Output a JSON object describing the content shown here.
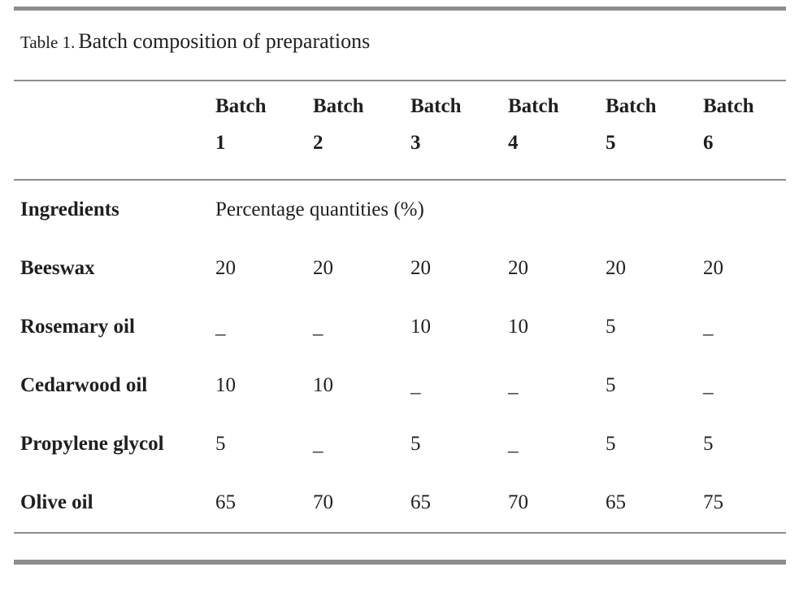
{
  "table": {
    "caption_label": "Table 1.",
    "caption_title": "Batch composition of preparations",
    "header": {
      "columns": [
        "Batch 1",
        "Batch 2",
        "Batch 3",
        "Batch 4",
        "Batch 5",
        "Batch 6"
      ]
    },
    "subheader": {
      "label": "Ingredients",
      "value": "Percentage quantities (%)"
    },
    "rows": [
      {
        "label": "Beeswax",
        "values": [
          "20",
          "20",
          "20",
          "20",
          "20",
          "20"
        ]
      },
      {
        "label": "Rosemary oil",
        "values": [
          "_",
          "_",
          "10",
          "10",
          "5",
          "_"
        ]
      },
      {
        "label": "Cedarwood oil",
        "values": [
          "10",
          "10",
          "_",
          "_",
          "5",
          "_"
        ]
      },
      {
        "label": "Propylene glycol",
        "values": [
          "5",
          "_",
          "5",
          "_",
          "5",
          "5"
        ]
      },
      {
        "label": "Olive oil",
        "values": [
          "65",
          "70",
          "65",
          "70",
          "65",
          "75"
        ]
      }
    ]
  },
  "colors": {
    "text": "#1f1f1f",
    "rule_gray": "#8c8c8c",
    "background": "#ffffff"
  }
}
